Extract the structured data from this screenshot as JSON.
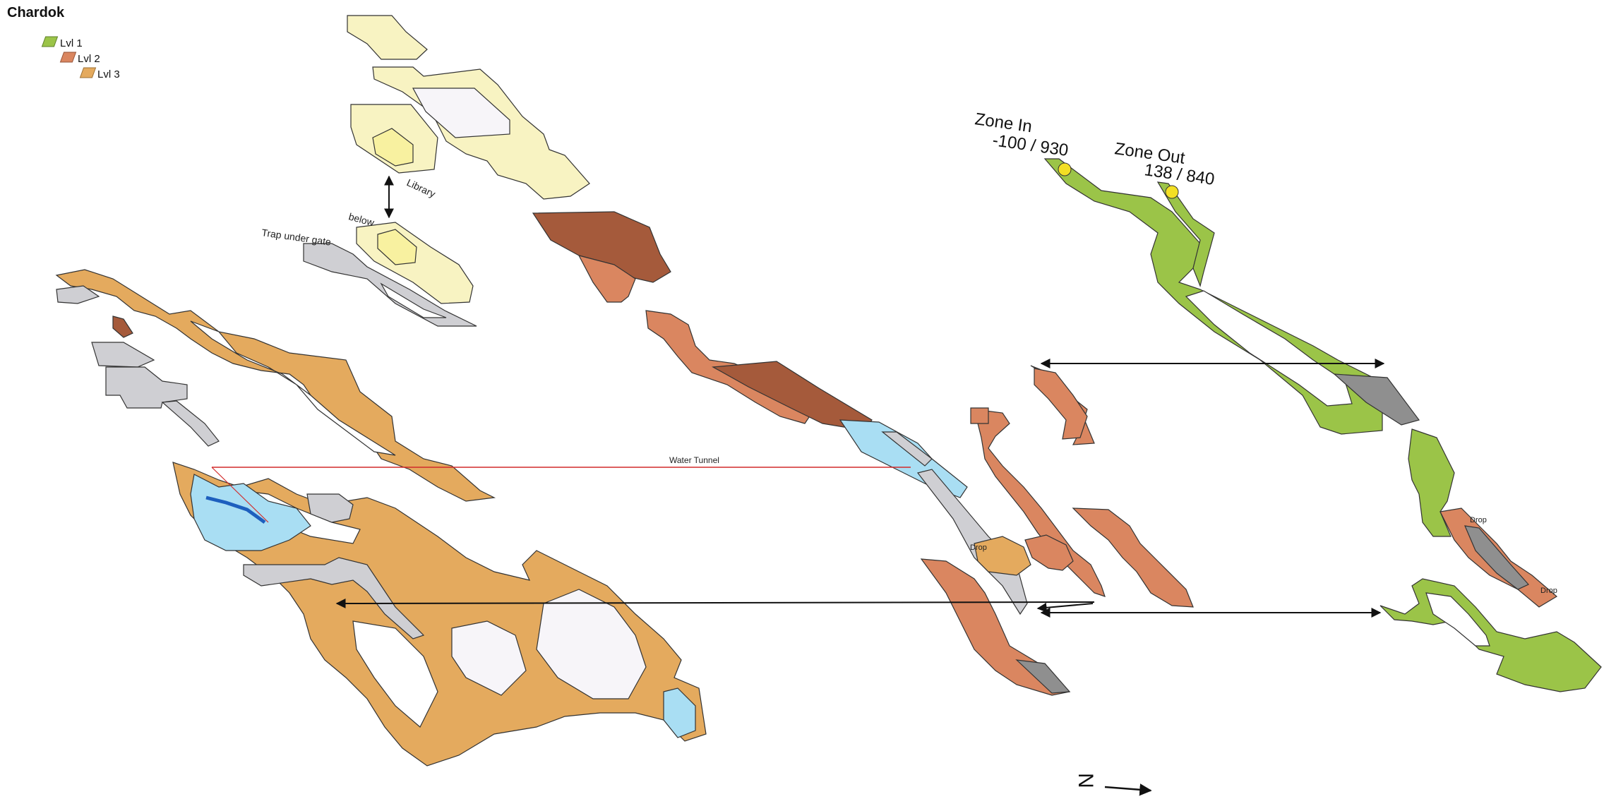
{
  "map": {
    "title": "Chardok",
    "legend": [
      {
        "label": "Lvl 1",
        "color": "#9bc448"
      },
      {
        "label": "Lvl 2",
        "color": "#da8660"
      },
      {
        "label": "Lvl 3",
        "color": "#e4aa5e"
      }
    ],
    "zone_in": {
      "label": "Zone In",
      "coords": "-100 / 930"
    },
    "zone_out": {
      "label": "Zone Out",
      "coords": "138 / 840"
    },
    "labels": {
      "library": "Library",
      "below": "below",
      "trap": "Trap under gate",
      "water_tunnel": "Water Tunnel",
      "drop": "Drop"
    },
    "compass": "N",
    "colors": {
      "lvl1": "#9bc448",
      "lvl2": "#da8660",
      "lvl2_dark": "#a55a3b",
      "lvl3": "#e4aa5e",
      "palace": "#f8f3c2",
      "gray_area": "#cfcfd3",
      "dark_gray": "#8f8f8f",
      "water": "#a9def3",
      "deep_water": "#1d5fbe",
      "hole": "#f7f5f9",
      "link_line": "#111111",
      "water_tunnel_line": "#d22a2a",
      "zone_marker": "#f3df24"
    }
  }
}
